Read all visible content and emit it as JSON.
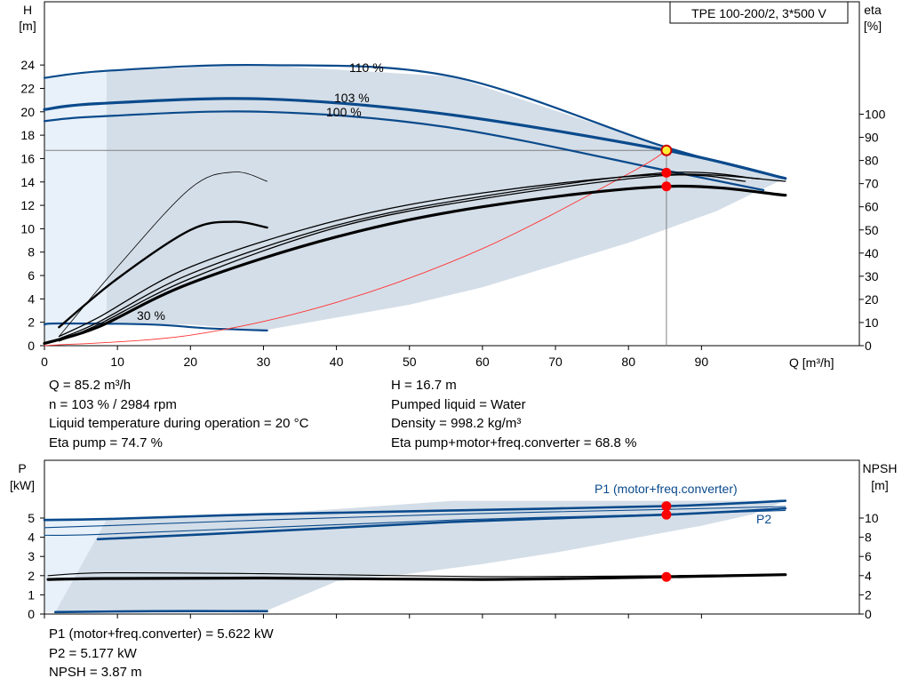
{
  "top_chart": {
    "title": "TPE 100-200/2, 3*500 V",
    "y_left_label": [
      "H",
      "[m]"
    ],
    "y_right_label": [
      "eta",
      "[%]"
    ],
    "x_label": "Q [m³/h]",
    "curve_labels": [
      "110 %",
      "103 %",
      "100 %",
      "30 %"
    ]
  },
  "bottom_chart": {
    "y_left_label": [
      "P",
      "[kW]"
    ],
    "y_right_label": [
      "NPSH",
      "[m]"
    ],
    "p1_label": "P1 (motor+freq.converter)",
    "p2_label": "P2"
  },
  "info": {
    "left": [
      "Q = 85.2 m³/h",
      "n = 103 % / 2984 rpm",
      "Liquid temperature during operation = 20 °C",
      "Eta pump = 74.7 %"
    ],
    "right": [
      "H = 16.7 m",
      "Pumped liquid = Water",
      "Density = 998.2 kg/m³",
      "Eta pump+motor+freq.converter = 68.8 %"
    ],
    "bottom": [
      "P1 (motor+freq.converter) = 5.622 kW",
      "P2 = 5.177 kW",
      "NPSH = 3.87 m"
    ]
  },
  "colors": {
    "curve_blue": "#0a4a8c",
    "area_fill": "#d4dee8",
    "area_fill_light": "#e8f1f9",
    "system_curve": "#ff3333",
    "duty_point": "#ff0000",
    "duty_point_highlight": "#ffee33",
    "axis": "#000000",
    "guide": "#808080"
  },
  "chart_data": [
    {
      "type": "line",
      "title": "TPE 100-200/2, 3*500 V",
      "xlabel": "Q [m³/h]",
      "ylabel": "H [m]",
      "y2label": "eta [%]",
      "xlim": [
        0,
        100
      ],
      "xticks": [
        0,
        10,
        20,
        30,
        40,
        50,
        60,
        70,
        80,
        90
      ],
      "ylim": [
        0,
        28
      ],
      "yticks": [
        0,
        2,
        4,
        6,
        8,
        10,
        12,
        14,
        16,
        18,
        20,
        22,
        24
      ],
      "y2lim": [
        0,
        140
      ],
      "y2ticks": [
        0,
        10,
        20,
        30,
        40,
        50,
        60,
        70,
        80,
        90,
        100
      ],
      "operating_area": {
        "upper": [
          [
            8.5,
            23.5
          ],
          [
            30,
            24.0
          ],
          [
            56,
            23.0
          ],
          [
            85,
            17.0
          ],
          [
            101.5,
            14.3
          ]
        ],
        "lower": [
          [
            101.5,
            14.3
          ],
          [
            97,
            13.0
          ],
          [
            92,
            11.5
          ],
          [
            80,
            8.8
          ],
          [
            60,
            5.0
          ],
          [
            50,
            3.5
          ],
          [
            40,
            2.4
          ],
          [
            30,
            1.3
          ],
          [
            20,
            1.8
          ],
          [
            8.5,
            1.8
          ]
        ]
      },
      "series": [
        {
          "name": "110 %",
          "kind": "head",
          "x": [
            0,
            8.5,
            30,
            56,
            85,
            101.5
          ],
          "y": [
            22.9,
            23.5,
            24.0,
            23.0,
            17.0,
            14.3
          ]
        },
        {
          "name": "103 %",
          "kind": "head",
          "x": [
            0,
            7.3,
            30,
            55,
            85.2,
            101.5
          ],
          "y": [
            20.2,
            20.7,
            21.1,
            19.8,
            16.7,
            14.3
          ]
        },
        {
          "name": "100 %",
          "kind": "head",
          "x": [
            0,
            7.3,
            30,
            55,
            85,
            98.5
          ],
          "y": [
            19.2,
            19.6,
            20.0,
            18.7,
            15.0,
            13.3
          ]
        },
        {
          "name": "30 %",
          "kind": "head",
          "x": [
            0,
            2,
            15,
            22,
            30.5
          ],
          "y": [
            1.8,
            1.9,
            1.8,
            1.5,
            1.3
          ]
        },
        {
          "name": "system",
          "kind": "system",
          "x": [
            0,
            20,
            40,
            60,
            80,
            85.2
          ],
          "y": [
            0,
            0.9,
            3.7,
            8.3,
            14.7,
            16.7
          ]
        },
        {
          "name": "eta-110",
          "kind": "eta",
          "x": [
            2,
            7.3,
            20,
            40,
            60,
            85,
            101.5
          ],
          "y": [
            4,
            12,
            34,
            54,
            66,
            74,
            71
          ]
        },
        {
          "name": "eta-103",
          "kind": "eta",
          "x": [
            2,
            7.3,
            20,
            40,
            60,
            85.2,
            98
          ],
          "y": [
            3,
            10,
            31,
            52,
            64.5,
            74.7,
            72
          ]
        },
        {
          "name": "eta-100",
          "kind": "eta",
          "x": [
            2,
            7.3,
            20,
            40,
            60,
            85,
            96
          ],
          "y": [
            2,
            9,
            29,
            51,
            63.5,
            73.5,
            71
          ]
        },
        {
          "name": "eta-fc",
          "kind": "eta-thick",
          "x": [
            0,
            7.3,
            20,
            40,
            60,
            85.2,
            101.5
          ],
          "y": [
            1,
            8,
            27,
            47,
            60,
            68.8,
            65
          ]
        },
        {
          "name": "eta-30-thin",
          "kind": "eta-thin",
          "x": [
            2,
            10,
            20,
            26,
            30.5
          ],
          "y": [
            4,
            34,
            68,
            75,
            71
          ]
        },
        {
          "name": "eta-30",
          "kind": "eta-mid",
          "x": [
            2,
            10,
            20,
            26,
            30.5
          ],
          "y": [
            8,
            29,
            50,
            53.5,
            51
          ]
        }
      ],
      "duty_points": [
        {
          "x": 85.2,
          "y": 16.7,
          "axis": "H",
          "highlight": true
        },
        {
          "x": 85.2,
          "y": 74.7,
          "axis": "eta"
        },
        {
          "x": 85.2,
          "y": 68.8,
          "axis": "eta"
        }
      ]
    },
    {
      "type": "line",
      "ylabel": "P [kW]",
      "y2label": "NPSH [m]",
      "xlim": [
        0,
        100
      ],
      "ylim": [
        0,
        6
      ],
      "yticks": [
        0,
        1,
        2,
        3,
        4,
        5
      ],
      "y2lim": [
        0,
        12
      ],
      "y2ticks": [
        0,
        2,
        4,
        6,
        8,
        10
      ],
      "operating_area": {
        "upper": [
          [
            8.5,
            4.9
          ],
          [
            30,
            5.2
          ],
          [
            56,
            5.9
          ],
          [
            101.5,
            5.9
          ]
        ],
        "lower": [
          [
            101.5,
            5.9
          ],
          [
            97,
            5.2
          ],
          [
            90,
            4.6
          ],
          [
            80,
            3.9
          ],
          [
            70,
            3.2
          ],
          [
            60,
            2.6
          ],
          [
            50,
            2.1
          ],
          [
            40,
            1.7
          ],
          [
            30,
            0.1
          ],
          [
            1.5,
            0.1
          ]
        ]
      },
      "series": [
        {
          "name": "P1 (motor+freq.converter)",
          "kind": "p1",
          "x": [
            0,
            8.5,
            30,
            56,
            85.2,
            101.5
          ],
          "y": [
            4.9,
            4.95,
            5.2,
            5.4,
            5.622,
            5.9
          ]
        },
        {
          "name": "P2",
          "kind": "p2",
          "x": [
            7.3,
            30,
            56,
            85.2,
            101.5
          ],
          "y": [
            3.9,
            4.3,
            4.8,
            5.177,
            5.5
          ]
        },
        {
          "name": "P-110",
          "kind": "p-thin",
          "x": [
            0,
            8.5,
            30,
            56,
            85,
            101.5
          ],
          "y": [
            4.5,
            4.6,
            4.9,
            5.2,
            5.45,
            5.6
          ]
        },
        {
          "name": "P-100",
          "kind": "p-thin",
          "x": [
            0,
            7.3,
            30,
            56,
            85,
            101.5
          ],
          "y": [
            4.1,
            4.15,
            4.5,
            4.9,
            5.2,
            5.4
          ]
        },
        {
          "name": "P-30",
          "kind": "p-low",
          "x": [
            1.5,
            15,
            30.5
          ],
          "y": [
            0.1,
            0.15,
            0.15
          ]
        },
        {
          "name": "NPSH",
          "kind": "npsh",
          "x": [
            0.5,
            8.5,
            30,
            60,
            85.2,
            101.5
          ],
          "y": [
            3.6,
            3.7,
            3.75,
            3.6,
            3.87,
            4.1
          ]
        },
        {
          "name": "NPSH-a",
          "kind": "npsh-thin",
          "x": [
            0.5,
            8.5,
            30,
            60,
            85.2,
            101.5
          ],
          "y": [
            4.0,
            4.3,
            4.2,
            3.9,
            4.0,
            4.15
          ]
        }
      ],
      "duty_points": [
        {
          "x": 85.2,
          "y": 5.622,
          "axis": "P"
        },
        {
          "x": 85.2,
          "y": 5.177,
          "axis": "P"
        },
        {
          "x": 85.2,
          "y": 3.87,
          "axis": "NPSH"
        }
      ]
    }
  ]
}
